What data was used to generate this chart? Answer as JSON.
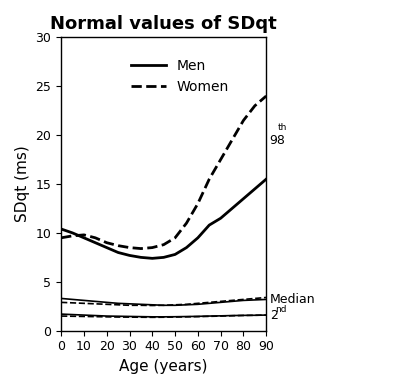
{
  "title": "Normal values of SDqt",
  "xlabel": "Age (years)",
  "ylabel": "SDqt (ms)",
  "xlim": [
    0,
    90
  ],
  "ylim": [
    0,
    30
  ],
  "xticks": [
    0,
    10,
    20,
    30,
    40,
    50,
    60,
    70,
    80,
    90
  ],
  "yticks": [
    0,
    5,
    10,
    15,
    20,
    25,
    30
  ],
  "age": [
    0,
    5,
    10,
    15,
    20,
    25,
    30,
    35,
    40,
    45,
    50,
    55,
    60,
    65,
    70,
    75,
    80,
    85,
    90
  ],
  "men_98th": [
    10.4,
    10.0,
    9.5,
    9.0,
    8.5,
    8.0,
    7.7,
    7.5,
    7.4,
    7.5,
    7.8,
    8.5,
    9.5,
    10.8,
    11.5,
    12.5,
    13.5,
    14.5,
    15.5
  ],
  "women_98th": [
    9.5,
    9.7,
    9.8,
    9.5,
    9.0,
    8.7,
    8.5,
    8.4,
    8.5,
    8.8,
    9.5,
    11.0,
    13.0,
    15.5,
    17.5,
    19.5,
    21.5,
    23.0,
    24.0
  ],
  "men_median": [
    3.3,
    3.2,
    3.1,
    3.0,
    2.9,
    2.8,
    2.75,
    2.7,
    2.65,
    2.6,
    2.6,
    2.65,
    2.7,
    2.8,
    2.9,
    3.0,
    3.1,
    3.15,
    3.2
  ],
  "women_median": [
    2.9,
    2.85,
    2.8,
    2.75,
    2.7,
    2.65,
    2.6,
    2.6,
    2.58,
    2.6,
    2.65,
    2.7,
    2.8,
    2.9,
    3.0,
    3.1,
    3.2,
    3.3,
    3.4
  ],
  "men_2nd": [
    1.7,
    1.65,
    1.6,
    1.55,
    1.5,
    1.48,
    1.46,
    1.44,
    1.42,
    1.42,
    1.43,
    1.45,
    1.47,
    1.5,
    1.52,
    1.55,
    1.57,
    1.58,
    1.6
  ],
  "women_2nd": [
    1.5,
    1.48,
    1.46,
    1.44,
    1.42,
    1.4,
    1.39,
    1.38,
    1.37,
    1.38,
    1.4,
    1.42,
    1.44,
    1.47,
    1.5,
    1.53,
    1.56,
    1.58,
    1.6
  ],
  "line_color": "#000000",
  "background_color": "#ffffff",
  "label_98th_base": "98",
  "label_98th_sup": "th",
  "label_median": "Median",
  "label_2nd_base": "2",
  "label_2nd_sup": "nd",
  "legend_men": "Men",
  "legend_women": "Women"
}
